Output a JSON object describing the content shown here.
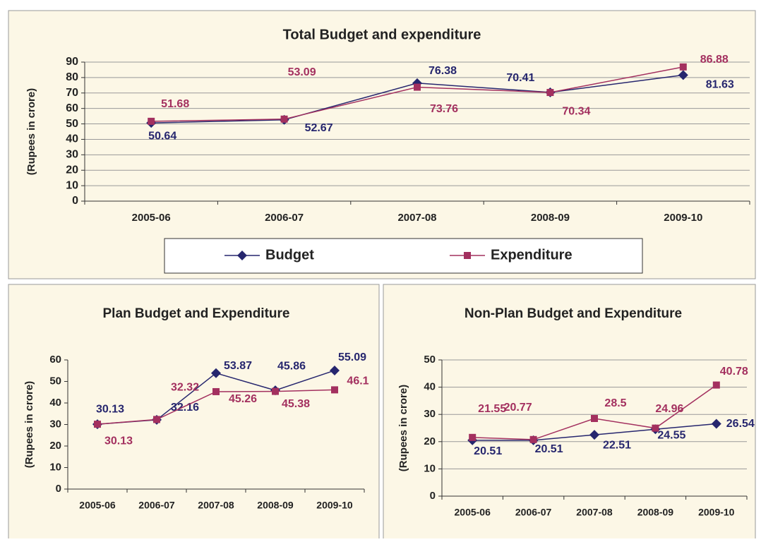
{
  "chart_data": [
    {
      "type": "line",
      "title": "Total Budget and expenditure",
      "y_label": "(Rupees in crore)",
      "categories": [
        "2005-06",
        "2006-07",
        "2007-08",
        "2008-09",
        "2009-10"
      ],
      "series": [
        {
          "name": "Budget",
          "color": "#26266e",
          "marker": "diamond",
          "values": [
            50.64,
            52.67,
            76.38,
            70.41,
            81.63
          ]
        },
        {
          "name": "Expenditure",
          "color": "#a3305f",
          "marker": "square",
          "values": [
            51.68,
            53.09,
            73.76,
            70.34,
            86.88
          ]
        }
      ],
      "ylim": [
        0,
        90
      ],
      "yticks": [
        0,
        10,
        20,
        30,
        40,
        50,
        60,
        70,
        80,
        90
      ],
      "grid": true,
      "legend": "bottom"
    },
    {
      "type": "line",
      "title": "Plan Budget and Expenditure",
      "y_label": "(Rupees in crore)",
      "categories": [
        "2005-06",
        "2006-07",
        "2007-08",
        "2008-09",
        "2009-10"
      ],
      "series": [
        {
          "color": "#26266e",
          "marker": "diamond",
          "values": [
            30.13,
            32.16,
            53.87,
            45.86,
            55.09
          ]
        },
        {
          "color": "#a3305f",
          "marker": "square",
          "values": [
            30.13,
            32.32,
            45.26,
            45.38,
            46.1
          ]
        }
      ],
      "ylim": [
        0,
        60
      ],
      "yticks": [
        0,
        10,
        20,
        30,
        40,
        50,
        60
      ],
      "grid": false
    },
    {
      "type": "line",
      "title": "Non-Plan Budget and Expenditure",
      "y_label": "(Rupees in crore)",
      "categories": [
        "2005-06",
        "2006-07",
        "2007-08",
        "2008-09",
        "2009-10"
      ],
      "series": [
        {
          "color": "#26266e",
          "marker": "diamond",
          "values": [
            20.51,
            20.51,
            22.51,
            24.55,
            26.54
          ]
        },
        {
          "color": "#a3305f",
          "marker": "square",
          "values": [
            21.55,
            20.77,
            28.5,
            24.96,
            40.78
          ]
        }
      ],
      "ylim": [
        0,
        50
      ],
      "yticks": [
        0,
        10,
        20,
        30,
        40,
        50
      ],
      "grid": true
    }
  ]
}
